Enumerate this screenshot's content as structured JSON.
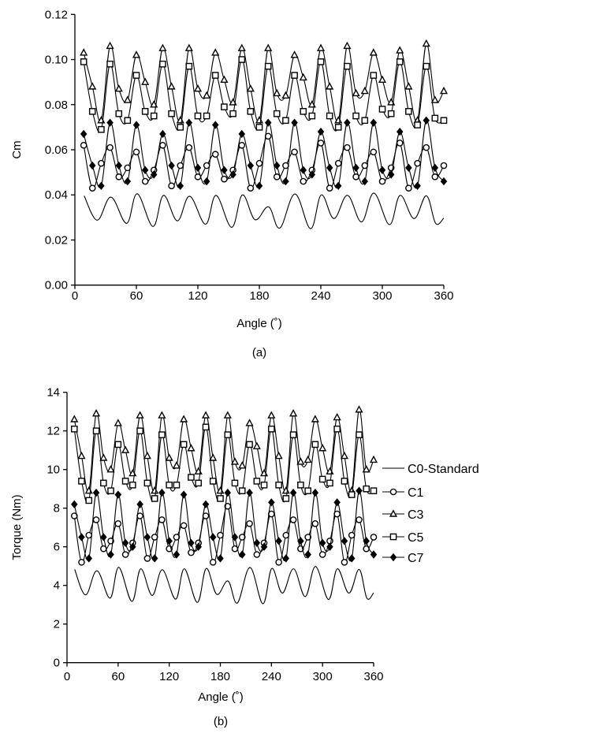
{
  "chart_data": [
    {
      "type": "line",
      "panel_label": "(a)",
      "xlabel": "Angle (˚)",
      "ylabel": "Cm",
      "xlim": [
        0,
        360
      ],
      "ylim": [
        0,
        0.12
      ],
      "xticks": [
        0,
        60,
        120,
        180,
        240,
        300,
        360
      ],
      "yticks": [
        "0.00",
        "0.02",
        "0.04",
        "0.06",
        "0.08",
        "0.10",
        "0.12"
      ],
      "grid": false,
      "legend": "none",
      "x": [
        8.6,
        17.1,
        25.7,
        34.3,
        42.9,
        51.4,
        60,
        68.6,
        77.1,
        85.7,
        94.3,
        102.9,
        111.4,
        120,
        128.6,
        137.1,
        145.7,
        154.3,
        162.9,
        171.4,
        180,
        188.6,
        197.1,
        205.7,
        214.3,
        222.9,
        231.4,
        240,
        248.6,
        257.1,
        265.7,
        274.3,
        282.9,
        291.4,
        300,
        308.6,
        317.1,
        325.7,
        334.3,
        342.9,
        351.4,
        360
      ],
      "series": [
        {
          "name": "C0-Standard",
          "marker": "none",
          "x": [
            9,
            21.8,
            35.2,
            50.5,
            60.8,
            76.2,
            86.5,
            100,
            112,
            127.5,
            137.8,
            153,
            163.5,
            175.8,
            189,
            200,
            214.8,
            230,
            240.5,
            252.8,
            266,
            279.7,
            291.8,
            307,
            317.4,
            331,
            343,
            352,
            360
          ],
          "values": [
            0.0396,
            0.0288,
            0.039,
            0.0274,
            0.0405,
            0.026,
            0.0398,
            0.0285,
            0.0394,
            0.027,
            0.0398,
            0.0256,
            0.04,
            0.029,
            0.0347,
            0.0253,
            0.0404,
            0.025,
            0.04,
            0.0295,
            0.0398,
            0.028,
            0.0408,
            0.0268,
            0.0398,
            0.0295,
            0.0396,
            0.0274,
            0.0297
          ]
        },
        {
          "name": "C1",
          "marker": "circle",
          "values": [
            0.062,
            0.043,
            0.054,
            0.061,
            0.048,
            0.052,
            0.059,
            0.046,
            0.051,
            0.062,
            0.044,
            0.053,
            0.061,
            0.048,
            0.053,
            0.058,
            0.047,
            0.051,
            0.062,
            0.043,
            0.054,
            0.066,
            0.048,
            0.053,
            0.059,
            0.046,
            0.051,
            0.063,
            0.043,
            0.054,
            0.061,
            0.048,
            0.053,
            0.059,
            0.046,
            0.052,
            0.063,
            0.043,
            0.054,
            0.061,
            0.048,
            0.053
          ]
        },
        {
          "name": "C3",
          "marker": "triangle",
          "values": [
            0.103,
            0.088,
            0.073,
            0.106,
            0.087,
            0.082,
            0.102,
            0.09,
            0.08,
            0.105,
            0.088,
            0.073,
            0.105,
            0.087,
            0.084,
            0.103,
            0.091,
            0.081,
            0.105,
            0.087,
            0.073,
            0.105,
            0.085,
            0.084,
            0.102,
            0.092,
            0.08,
            0.105,
            0.088,
            0.073,
            0.106,
            0.085,
            0.086,
            0.103,
            0.091,
            0.081,
            0.104,
            0.088,
            0.073,
            0.107,
            0.082,
            0.086
          ]
        },
        {
          "name": "C5",
          "marker": "square",
          "values": [
            0.099,
            0.077,
            0.069,
            0.098,
            0.076,
            0.073,
            0.093,
            0.077,
            0.075,
            0.098,
            0.076,
            0.07,
            0.097,
            0.075,
            0.075,
            0.093,
            0.079,
            0.076,
            0.1,
            0.077,
            0.07,
            0.097,
            0.076,
            0.073,
            0.093,
            0.077,
            0.075,
            0.099,
            0.075,
            0.07,
            0.097,
            0.075,
            0.073,
            0.093,
            0.078,
            0.076,
            0.099,
            0.077,
            0.071,
            0.097,
            0.074,
            0.073
          ]
        },
        {
          "name": "C7",
          "marker": "diamond",
          "values": [
            0.067,
            0.053,
            0.044,
            0.072,
            0.053,
            0.046,
            0.071,
            0.051,
            0.049,
            0.067,
            0.053,
            0.044,
            0.072,
            0.052,
            0.046,
            0.071,
            0.051,
            0.049,
            0.067,
            0.053,
            0.044,
            0.072,
            0.053,
            0.046,
            0.072,
            0.051,
            0.049,
            0.068,
            0.052,
            0.044,
            0.072,
            0.052,
            0.046,
            0.072,
            0.051,
            0.049,
            0.068,
            0.052,
            0.044,
            0.073,
            0.052,
            0.046
          ]
        }
      ]
    },
    {
      "type": "line",
      "panel_label": "(b)",
      "xlabel": "Angle (˚)",
      "ylabel": "Torque (Nm)",
      "xlim": [
        0,
        360
      ],
      "ylim": [
        0,
        14
      ],
      "xticks": [
        0,
        60,
        120,
        180,
        240,
        300,
        360
      ],
      "yticks": [
        "0",
        "2",
        "4",
        "6",
        "8",
        "10",
        "12",
        "14"
      ],
      "grid": false,
      "legend": "right",
      "x": [
        8.6,
        17.1,
        25.7,
        34.3,
        42.9,
        51.4,
        60,
        68.6,
        77.1,
        85.7,
        94.3,
        102.9,
        111.4,
        120,
        128.6,
        137.1,
        145.7,
        154.3,
        162.9,
        171.4,
        180,
        188.6,
        197.1,
        205.7,
        214.3,
        222.9,
        231.4,
        240,
        248.6,
        257.1,
        265.7,
        274.3,
        282.9,
        291.4,
        300,
        308.6,
        317.1,
        325.7,
        334.3,
        342.9,
        351.4,
        360
      ],
      "series": [
        {
          "name": "C0-Standard",
          "marker": "none",
          "x": [
            9,
            21.8,
            35.2,
            50.5,
            60.8,
            76.2,
            86.5,
            100,
            112,
            127.5,
            137.8,
            153,
            163.5,
            175.8,
            189,
            200,
            214.8,
            230,
            240.5,
            252.8,
            266,
            279.7,
            291.8,
            307,
            317.4,
            331,
            343,
            352,
            360
          ],
          "values": [
            4.83,
            3.51,
            4.76,
            3.34,
            4.94,
            3.17,
            4.86,
            3.48,
            4.81,
            3.29,
            4.86,
            3.12,
            4.88,
            3.54,
            4.23,
            3.09,
            4.93,
            3.05,
            4.88,
            3.6,
            4.86,
            3.42,
            4.98,
            3.27,
            4.86,
            3.6,
            4.83,
            3.34,
            3.62
          ]
        },
        {
          "name": "C1",
          "marker": "circle",
          "values": [
            7.6,
            5.2,
            6.6,
            7.4,
            5.9,
            6.3,
            7.2,
            5.6,
            6.2,
            7.6,
            5.4,
            6.5,
            7.4,
            5.9,
            6.5,
            7.1,
            5.7,
            6.2,
            7.6,
            5.2,
            6.6,
            8.1,
            5.9,
            6.5,
            7.2,
            5.6,
            6.2,
            7.7,
            5.2,
            6.6,
            7.4,
            5.9,
            6.5,
            7.2,
            5.6,
            6.3,
            7.7,
            5.2,
            6.6,
            7.4,
            5.9,
            6.5
          ]
        },
        {
          "name": "C3",
          "marker": "triangle",
          "values": [
            12.6,
            10.7,
            8.9,
            12.9,
            10.6,
            10.0,
            12.4,
            11.0,
            9.8,
            12.8,
            10.7,
            8.9,
            12.8,
            10.6,
            10.2,
            12.6,
            11.1,
            9.9,
            12.8,
            10.6,
            8.9,
            12.8,
            10.4,
            10.2,
            12.4,
            11.2,
            9.8,
            12.8,
            10.7,
            8.9,
            12.9,
            10.4,
            10.5,
            12.6,
            11.1,
            9.9,
            12.7,
            10.7,
            8.9,
            13.1,
            10.0,
            10.5
          ]
        },
        {
          "name": "C5",
          "marker": "square",
          "values": [
            12.1,
            9.4,
            8.4,
            12.0,
            9.3,
            8.9,
            11.3,
            9.4,
            9.2,
            12.0,
            9.3,
            8.5,
            11.8,
            9.2,
            9.2,
            11.3,
            9.6,
            9.3,
            12.2,
            9.4,
            8.5,
            11.8,
            9.3,
            8.9,
            11.3,
            9.4,
            9.2,
            12.1,
            9.2,
            8.5,
            11.8,
            9.2,
            8.9,
            11.3,
            9.5,
            9.3,
            12.1,
            9.4,
            8.7,
            11.8,
            9.0,
            8.9
          ]
        },
        {
          "name": "C7",
          "marker": "diamond",
          "values": [
            8.2,
            6.5,
            5.4,
            8.8,
            6.5,
            5.6,
            8.7,
            6.2,
            6.0,
            8.2,
            6.5,
            5.4,
            8.8,
            6.3,
            5.6,
            8.7,
            6.2,
            6.0,
            8.2,
            6.5,
            5.4,
            8.8,
            6.5,
            5.6,
            8.8,
            6.2,
            6.0,
            8.3,
            6.3,
            5.4,
            8.8,
            6.3,
            5.6,
            8.8,
            6.2,
            6.0,
            8.3,
            6.3,
            5.4,
            8.9,
            6.3,
            5.6
          ]
        }
      ]
    }
  ]
}
